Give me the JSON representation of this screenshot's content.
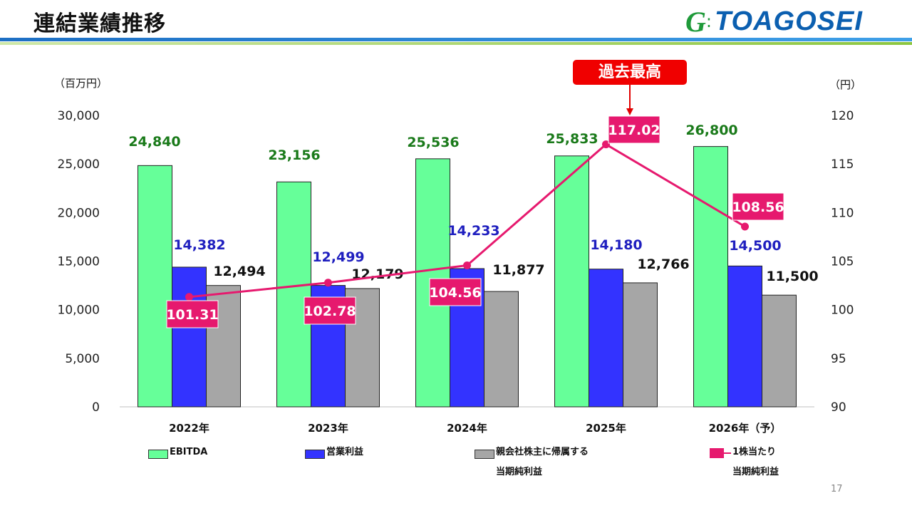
{
  "header": {
    "title": "連結業績推移",
    "logo_text": "TOAGOSEI"
  },
  "record_badge": "過去最高",
  "page_number": "17",
  "colors": {
    "ebitda": "#66ff99",
    "operating_profit": "#3333ff",
    "net_income": "#a6a6a6",
    "eps_line": "#e6196e",
    "record_badge": "#f00000",
    "ebitda_label": "#1a7a1a",
    "operating_label": "#1f1fbf"
  },
  "chart_data": {
    "type": "bar+line",
    "left_unit": "（百万円）",
    "right_unit": "（円）",
    "categories": [
      "2022年",
      "2023年",
      "2024年",
      "2025年",
      "2026年（予）"
    ],
    "y_left": {
      "range": [
        0,
        30000
      ],
      "ticks": [
        "0",
        "5,000",
        "10,000",
        "15,000",
        "20,000",
        "25,000",
        "30,000"
      ]
    },
    "y_right": {
      "range": [
        90,
        120
      ],
      "ticks": [
        "90",
        "95",
        "100",
        "105",
        "110",
        "115",
        "120"
      ]
    },
    "grid": false,
    "legend_position": "bottom",
    "series": [
      {
        "name": "EBITDA",
        "type": "bar",
        "axis": "left",
        "values": [
          24840,
          23156,
          25536,
          25833,
          26800
        ],
        "labels": [
          "24,840",
          "23,156",
          "25,536",
          "25,833",
          "26,800"
        ]
      },
      {
        "name": "営業利益",
        "type": "bar",
        "axis": "left",
        "values": [
          14382,
          12499,
          14233,
          14180,
          14500
        ],
        "labels": [
          "14,382",
          "12,499",
          "14,233",
          "14,180",
          "14,500"
        ]
      },
      {
        "name": "親会社株主に帰属する当期純利益",
        "name_lines": [
          "親会社株主に帰属する",
          "当期純利益"
        ],
        "type": "bar",
        "axis": "left",
        "values": [
          12494,
          12179,
          11877,
          12766,
          11500
        ],
        "labels": [
          "12,494",
          "12,179",
          "11,877",
          "12,766",
          "11,500"
        ]
      },
      {
        "name": "1株当たり当期純利益",
        "name_lines": [
          "1株当たり",
          "当期純利益"
        ],
        "type": "line",
        "axis": "right",
        "values": [
          101.31,
          102.78,
          104.56,
          117.02,
          108.56
        ],
        "labels": [
          "101.31",
          "102.78",
          "104.56",
          "117.02",
          "108.56"
        ]
      }
    ]
  }
}
